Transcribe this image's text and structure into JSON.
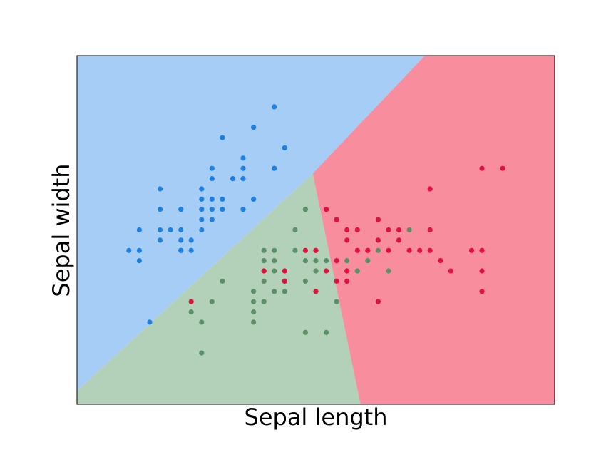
{
  "chart_data": {
    "type": "scatter",
    "title": "",
    "xlabel": "Sepal length",
    "ylabel": "Sepal width",
    "xlim": [
      3.8,
      8.4
    ],
    "ylim": [
      1.5,
      4.9
    ],
    "xticks_visible": false,
    "yticks_visible": false,
    "grid": false,
    "legend": "none",
    "background": "decision regions (3 classes)",
    "region_colors": [
      "#a5cdf5",
      "#b3d1b9",
      "#f88d9e"
    ],
    "region_boundaries": {
      "triple_point": [
        6.07,
        3.75
      ],
      "class0_class1": [
        [
          3.8,
          1.63
        ],
        [
          6.07,
          3.75
        ]
      ],
      "class0_class2": [
        [
          6.07,
          3.75
        ],
        [
          7.15,
          4.9
        ]
      ],
      "class1_class2": [
        [
          6.07,
          3.75
        ],
        [
          6.53,
          1.5
        ]
      ]
    },
    "series": [
      {
        "color": "#1e80e0",
        "points": [
          [
            4.4,
            2.9
          ],
          [
            4.4,
            3.0
          ],
          [
            4.3,
            3.0
          ],
          [
            4.4,
            3.2
          ],
          [
            4.5,
            2.3
          ],
          [
            4.6,
            3.1
          ],
          [
            4.6,
            3.2
          ],
          [
            4.6,
            3.4
          ],
          [
            4.6,
            3.6
          ],
          [
            4.7,
            3.2
          ],
          [
            4.8,
            3.0
          ],
          [
            4.8,
            3.1
          ],
          [
            4.8,
            3.2
          ],
          [
            4.8,
            3.4
          ],
          [
            4.8,
            3.0
          ],
          [
            4.9,
            3.0
          ],
          [
            4.9,
            3.1
          ],
          [
            5.0,
            3.4
          ],
          [
            5.0,
            3.5
          ],
          [
            5.0,
            3.6
          ],
          [
            5.0,
            3.3
          ],
          [
            5.0,
            3.2
          ],
          [
            5.1,
            3.3
          ],
          [
            5.1,
            3.5
          ],
          [
            5.1,
            3.7
          ],
          [
            5.1,
            3.8
          ],
          [
            5.1,
            3.4
          ],
          [
            5.2,
            3.4
          ],
          [
            5.2,
            3.5
          ],
          [
            5.2,
            4.1
          ],
          [
            5.3,
            3.7
          ],
          [
            5.4,
            3.4
          ],
          [
            5.4,
            3.7
          ],
          [
            5.4,
            3.8
          ],
          [
            5.4,
            3.9
          ],
          [
            5.5,
            3.5
          ],
          [
            5.5,
            4.2
          ],
          [
            5.7,
            4.4
          ],
          [
            5.7,
            3.8
          ],
          [
            5.8,
            4.0
          ],
          [
            5.7,
            3.8
          ]
        ]
      },
      {
        "color": "#5a8f68",
        "points": [
          [
            4.9,
            2.4
          ],
          [
            5.0,
            2.3
          ],
          [
            5.0,
            2.0
          ],
          [
            5.2,
            2.7
          ],
          [
            5.1,
            2.5
          ],
          [
            5.5,
            2.3
          ],
          [
            5.5,
            2.4
          ],
          [
            5.5,
            2.5
          ],
          [
            5.5,
            2.6
          ],
          [
            5.6,
            2.7
          ],
          [
            5.6,
            2.5
          ],
          [
            5.6,
            2.8
          ],
          [
            5.6,
            3.0
          ],
          [
            5.6,
            2.9
          ],
          [
            5.7,
            2.8
          ],
          [
            5.7,
            2.6
          ],
          [
            5.7,
            2.9
          ],
          [
            5.7,
            3.0
          ],
          [
            5.8,
            2.7
          ],
          [
            5.8,
            2.6
          ],
          [
            5.9,
            3.0
          ],
          [
            5.9,
            3.2
          ],
          [
            6.0,
            2.2
          ],
          [
            6.0,
            2.7
          ],
          [
            6.0,
            2.9
          ],
          [
            6.0,
            3.4
          ],
          [
            6.1,
            2.8
          ],
          [
            6.1,
            2.9
          ],
          [
            6.1,
            3.0
          ],
          [
            6.2,
            2.2
          ],
          [
            6.2,
            2.9
          ],
          [
            6.3,
            2.5
          ],
          [
            6.3,
            2.9
          ],
          [
            6.3,
            3.3
          ],
          [
            6.4,
            2.9
          ],
          [
            6.4,
            3.2
          ],
          [
            6.5,
            2.8
          ],
          [
            6.6,
            2.9
          ],
          [
            6.6,
            3.0
          ],
          [
            6.7,
            3.0
          ],
          [
            6.7,
            3.1
          ],
          [
            6.8,
            2.8
          ],
          [
            6.9,
            3.1
          ],
          [
            7.0,
            3.2
          ]
        ]
      },
      {
        "color": "#e0113f",
        "points": [
          [
            4.9,
            2.5
          ],
          [
            5.6,
            2.8
          ],
          [
            5.8,
            2.7
          ],
          [
            5.8,
            2.8
          ],
          [
            6.0,
            3.0
          ],
          [
            6.1,
            3.0
          ],
          [
            6.1,
            2.6
          ],
          [
            6.2,
            3.4
          ],
          [
            6.2,
            2.8
          ],
          [
            6.3,
            3.3
          ],
          [
            6.3,
            2.9
          ],
          [
            6.3,
            2.7
          ],
          [
            6.4,
            3.2
          ],
          [
            6.4,
            2.8
          ],
          [
            6.4,
            2.7
          ],
          [
            6.4,
            3.1
          ],
          [
            6.5,
            3.2
          ],
          [
            6.5,
            3.0
          ],
          [
            6.6,
            3.0
          ],
          [
            6.7,
            3.3
          ],
          [
            6.7,
            3.1
          ],
          [
            6.7,
            2.5
          ],
          [
            6.8,
            3.2
          ],
          [
            6.8,
            3.0
          ],
          [
            6.9,
            3.1
          ],
          [
            6.9,
            3.2
          ],
          [
            7.0,
            3.0
          ],
          [
            7.1,
            3.0
          ],
          [
            7.2,
            3.6
          ],
          [
            7.2,
            3.2
          ],
          [
            7.2,
            3.0
          ],
          [
            7.3,
            2.9
          ],
          [
            7.4,
            2.8
          ],
          [
            7.6,
            3.0
          ],
          [
            7.7,
            3.8
          ],
          [
            7.7,
            3.0
          ],
          [
            7.7,
            2.8
          ],
          [
            7.7,
            2.6
          ],
          [
            7.9,
            3.8
          ]
        ]
      }
    ]
  }
}
